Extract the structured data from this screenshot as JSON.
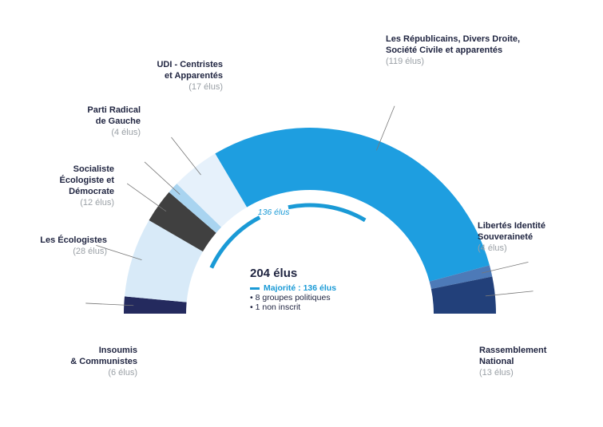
{
  "chart_data": {
    "type": "pie",
    "subtype": "semicircle-parliament",
    "total_label": "204 élus",
    "total_seats": 204,
    "majority": {
      "label": "Majorité : 136 élus",
      "arc_label": "136 élus",
      "seats": 136
    },
    "notes": [
      "• 8 groupes politiques",
      "• 1 non inscrit"
    ],
    "groups": [
      {
        "key": "insoumis",
        "name": "Insoumis\n& Communistes",
        "count_label": "(6 élus)",
        "seats": 6,
        "color": "#242a5e"
      },
      {
        "key": "ecologistes",
        "name": "Les Écologistes",
        "count_label": "(28 élus)",
        "seats": 28,
        "color": "#d8eaf8"
      },
      {
        "key": "socialiste",
        "name": "Socialiste\nÉcologiste et\nDémocrate",
        "count_label": "(12 élus)",
        "seats": 12,
        "color": "#404040"
      },
      {
        "key": "radical",
        "name": "Parti Radical\nde Gauche",
        "count_label": "(4 élus)",
        "seats": 4,
        "color": "#a9d4f0"
      },
      {
        "key": "udi",
        "name": "UDI - Centristes\net Apparentés",
        "count_label": "(17 élus)",
        "seats": 17,
        "color": "#e6f1fb"
      },
      {
        "key": "lr",
        "name": "Les Républicains, Divers Droite,\nSociété Civile et apparentés",
        "count_label": "(119 élus)",
        "seats": 119,
        "color": "#1e9ee0"
      },
      {
        "key": "liberte",
        "name": "Libertés Identité\nSouveraineté",
        "count_label": "(4 élus)",
        "seats": 4,
        "color": "#4d7ab8"
      },
      {
        "key": "rn",
        "name": "Rassemblement\nNational",
        "count_label": "(13 élus)",
        "seats": 13,
        "color": "#22407a"
      }
    ]
  }
}
